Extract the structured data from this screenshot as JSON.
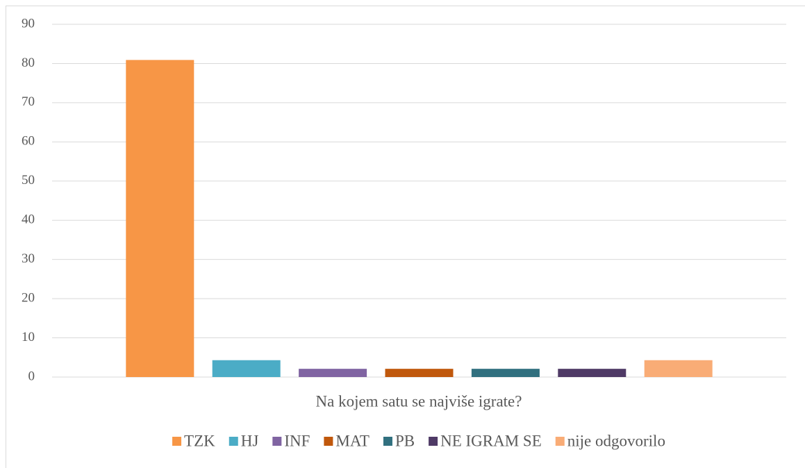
{
  "chart_data": {
    "type": "bar",
    "categories": [
      "Na kojem satu se najviše igrate?"
    ],
    "series": [
      {
        "name": "TZK",
        "color": "#f79646",
        "values": [
          80.9
        ]
      },
      {
        "name": "HJ",
        "color": "#4bacc6",
        "values": [
          4.3
        ]
      },
      {
        "name": "INF",
        "color": "#8064a2",
        "values": [
          2.1
        ]
      },
      {
        "name": "MAT",
        "color": "#c0580c",
        "values": [
          2.1
        ]
      },
      {
        "name": "PB",
        "color": "#31707f",
        "values": [
          2.1
        ]
      },
      {
        "name": "NE IGRAM SE",
        "color": "#4f3a66",
        "values": [
          2.1
        ]
      },
      {
        "name": "nije odgovorilo",
        "color": "#f9ac76",
        "values": [
          4.3
        ]
      }
    ],
    "ylim": [
      0,
      90
    ],
    "yticks": [
      0,
      10,
      20,
      30,
      40,
      50,
      60,
      70,
      80,
      90
    ],
    "grid": true,
    "legend": "bottom"
  }
}
